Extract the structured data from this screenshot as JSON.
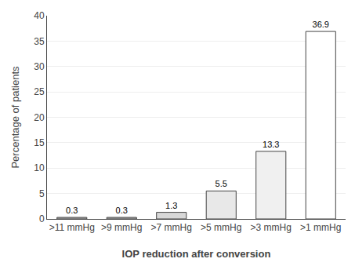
{
  "chart_data": {
    "type": "bar",
    "categories": [
      ">11 mmHg",
      ">9 mmHg",
      ">7 mmHg",
      ">5 mmHg",
      ">3 mmHg",
      ">1 mmHg"
    ],
    "values": [
      0.3,
      0.3,
      1.3,
      5.5,
      13.3,
      36.9
    ],
    "colors": [
      "#b0b0b0",
      "#b0b0b0",
      "#d8d8d8",
      "#e8e8e8",
      "#f0f0f0",
      "#ffffff"
    ],
    "xlabel": "IOP reduction after conversion",
    "ylabel": "Percentage of patients",
    "ylim": [
      0,
      40
    ],
    "yticks": [
      0,
      5,
      10,
      15,
      20,
      25,
      30,
      35,
      40
    ],
    "grid": true,
    "data_labels": true
  }
}
